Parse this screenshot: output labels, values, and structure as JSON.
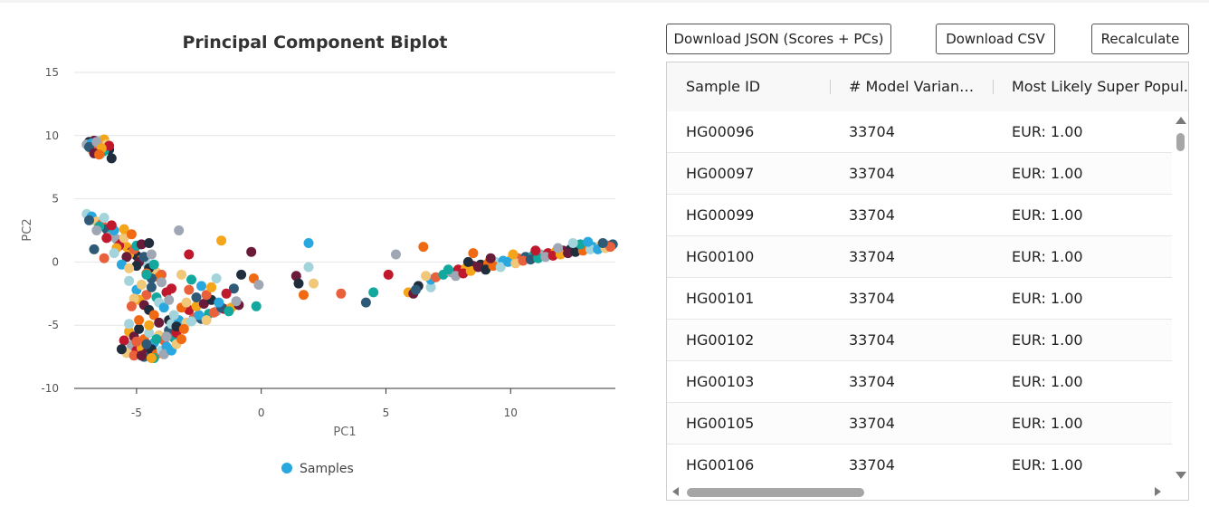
{
  "buttons": {
    "download_json": "Download JSON (Scores + PCs)",
    "download_csv": "Download CSV",
    "recalculate": "Recalculate"
  },
  "table": {
    "columns": [
      "Sample ID",
      "# Model Variants…",
      "Most Likely Super Popul…"
    ],
    "rows": [
      [
        "HG00096",
        "33704",
        "EUR: 1.00"
      ],
      [
        "HG00097",
        "33704",
        "EUR: 1.00"
      ],
      [
        "HG00099",
        "33704",
        "EUR: 1.00"
      ],
      [
        "HG00100",
        "33704",
        "EUR: 1.00"
      ],
      [
        "HG00101",
        "33704",
        "EUR: 1.00"
      ],
      [
        "HG00102",
        "33704",
        "EUR: 1.00"
      ],
      [
        "HG00103",
        "33704",
        "EUR: 1.00"
      ],
      [
        "HG00105",
        "33704",
        "EUR: 1.00"
      ],
      [
        "HG00106",
        "33704",
        "EUR: 1.00"
      ]
    ]
  },
  "chart_data": {
    "type": "scatter",
    "title": "Principal Component Biplot",
    "xlabel": "PC1",
    "ylabel": "PC2",
    "xlim": [
      -7.5,
      14.2
    ],
    "ylim": [
      -10,
      15
    ],
    "xticks": [
      -5,
      0,
      5,
      10
    ],
    "yticks": [
      -10,
      -5,
      0,
      5,
      10,
      15
    ],
    "grid": "horizontal",
    "legend": {
      "position": "bottom-center",
      "entries": [
        "Samples"
      ],
      "color": "#29a8e0"
    },
    "palette": [
      "#29a8e0",
      "#f4a519",
      "#e8603c",
      "#1f2d3d",
      "#13a89e",
      "#a3d4dc",
      "#c0182d",
      "#f1c77a",
      "#6b1b3a",
      "#2e5a78",
      "#f06a13",
      "#9ea7b3"
    ],
    "series": [
      {
        "name": "Samples",
        "points": [
          [
            -6.9,
            9.5
          ],
          [
            -6.7,
            9.2
          ],
          [
            -6.5,
            9.6
          ],
          [
            -6.3,
            9.1
          ],
          [
            -6.8,
            8.9
          ],
          [
            -6.4,
            9.4
          ],
          [
            -6.6,
            8.7
          ],
          [
            -6.2,
            9.0
          ],
          [
            -7.0,
            9.3
          ],
          [
            -6.5,
            8.8
          ],
          [
            -6.3,
            9.7
          ],
          [
            -6.7,
            9.6
          ],
          [
            -6.1,
            8.9
          ],
          [
            -6.6,
            9.0
          ],
          [
            -6.4,
            8.6
          ],
          [
            -6.8,
            9.4
          ],
          [
            -6.2,
            9.3
          ],
          [
            -6.5,
            9.1
          ],
          [
            -6.9,
            9.1
          ],
          [
            -6.3,
            8.8
          ],
          [
            -6.6,
            9.5
          ],
          [
            -6.1,
            9.2
          ],
          [
            -6.4,
            9.0
          ],
          [
            -6.7,
            8.6
          ],
          [
            -6.0,
            8.2
          ],
          [
            -6.5,
            8.5
          ],
          [
            -7.0,
            3.8
          ],
          [
            -6.8,
            3.6
          ],
          [
            -6.6,
            3.2
          ],
          [
            -6.4,
            3.0
          ],
          [
            -6.2,
            2.6
          ],
          [
            -6.0,
            2.2
          ],
          [
            -5.8,
            1.8
          ],
          [
            -5.6,
            1.5
          ],
          [
            -5.4,
            1.2
          ],
          [
            -5.2,
            0.8
          ],
          [
            -5.0,
            0.5
          ],
          [
            -4.8,
            0.2
          ],
          [
            -4.6,
            -0.1
          ],
          [
            -4.4,
            -0.4
          ],
          [
            -4.2,
            -0.8
          ],
          [
            -4.0,
            -1.0
          ],
          [
            -6.9,
            3.3
          ],
          [
            -6.5,
            2.8
          ],
          [
            -6.1,
            2.0
          ],
          [
            -5.7,
            1.3
          ],
          [
            -5.3,
            0.6
          ],
          [
            -4.9,
            0.0
          ],
          [
            -4.5,
            -0.5
          ],
          [
            -4.1,
            -1.2
          ],
          [
            -6.3,
            3.5
          ],
          [
            -5.9,
            2.5
          ],
          [
            -5.5,
            1.9
          ],
          [
            -5.1,
            1.0
          ],
          [
            -4.7,
            0.4
          ],
          [
            -4.3,
            -0.2
          ],
          [
            -6.6,
            2.5
          ],
          [
            -6.2,
            1.9
          ],
          [
            -5.8,
            1.1
          ],
          [
            -5.4,
            0.4
          ],
          [
            -5.0,
            -0.3
          ],
          [
            -4.6,
            -0.9
          ],
          [
            -5.9,
            0.7
          ],
          [
            -5.6,
            -0.2
          ],
          [
            -5.3,
            -0.5
          ],
          [
            -6.3,
            0.3
          ],
          [
            -6.7,
            1.0
          ],
          [
            -5.0,
            1.3
          ],
          [
            -4.4,
            0.6
          ],
          [
            -6.0,
            2.9
          ],
          [
            -5.5,
            2.6
          ],
          [
            -4.8,
            1.4
          ],
          [
            -4.5,
            1.5
          ],
          [
            -5.2,
            2.2
          ],
          [
            -5.3,
            -1.5
          ],
          [
            -5.0,
            -2.2
          ],
          [
            -4.8,
            -1.8
          ],
          [
            -4.6,
            -2.6
          ],
          [
            -4.4,
            -2.0
          ],
          [
            -4.2,
            -2.8
          ],
          [
            -4.0,
            -1.6
          ],
          [
            -3.8,
            -2.4
          ],
          [
            -4.9,
            -3.0
          ],
          [
            -4.7,
            -3.4
          ],
          [
            -4.5,
            -3.8
          ],
          [
            -4.3,
            -4.2
          ],
          [
            -4.1,
            -3.2
          ],
          [
            -3.9,
            -3.6
          ],
          [
            -5.1,
            -2.9
          ],
          [
            -5.2,
            -3.5
          ],
          [
            -4.4,
            -1.3
          ],
          [
            -4.6,
            -1.0
          ],
          [
            -3.7,
            -3.0
          ],
          [
            -3.6,
            -2.1
          ],
          [
            -5.3,
            -5.5
          ],
          [
            -5.1,
            -5.9
          ],
          [
            -4.9,
            -5.3
          ],
          [
            -4.7,
            -6.1
          ],
          [
            -4.5,
            -5.6
          ],
          [
            -4.3,
            -6.4
          ],
          [
            -4.1,
            -5.8
          ],
          [
            -3.9,
            -6.2
          ],
          [
            -3.7,
            -5.4
          ],
          [
            -3.5,
            -6.0
          ],
          [
            -5.2,
            -6.6
          ],
          [
            -5.0,
            -7.0
          ],
          [
            -4.8,
            -6.8
          ],
          [
            -4.6,
            -7.2
          ],
          [
            -4.4,
            -6.9
          ],
          [
            -4.2,
            -7.3
          ],
          [
            -4.0,
            -7.0
          ],
          [
            -3.8,
            -6.7
          ],
          [
            -5.4,
            -7.2
          ],
          [
            -5.1,
            -7.4
          ],
          [
            -4.7,
            -7.5
          ],
          [
            -4.3,
            -7.6
          ],
          [
            -3.9,
            -7.3
          ],
          [
            -5.5,
            -6.2
          ],
          [
            -4.5,
            -5.0
          ],
          [
            -4.1,
            -4.8
          ],
          [
            -3.7,
            -4.6
          ],
          [
            -4.9,
            -4.6
          ],
          [
            -5.3,
            -4.9
          ],
          [
            -3.6,
            -7.0
          ],
          [
            -3.4,
            -6.5
          ],
          [
            -5.0,
            -6.3
          ],
          [
            -4.6,
            -6.5
          ],
          [
            -4.2,
            -6.1
          ],
          [
            -3.8,
            -5.9
          ],
          [
            -3.4,
            -5.6
          ],
          [
            -4.4,
            -7.6
          ],
          [
            -4.8,
            -7.4
          ],
          [
            -5.6,
            -6.9
          ],
          [
            -3.2,
            -6.1
          ],
          [
            -3.6,
            -4.9
          ],
          [
            -3.3,
            -4.6
          ],
          [
            -3.0,
            -4.8
          ],
          [
            -2.7,
            -4.4
          ],
          [
            -2.4,
            -4.5
          ],
          [
            -2.1,
            -4.1
          ],
          [
            -1.8,
            -3.9
          ],
          [
            -1.5,
            -3.7
          ],
          [
            -1.2,
            -3.6
          ],
          [
            -0.9,
            -3.4
          ],
          [
            -3.4,
            -5.1
          ],
          [
            -3.1,
            -5.3
          ],
          [
            -2.8,
            -4.7
          ],
          [
            -2.5,
            -4.2
          ],
          [
            -2.2,
            -4.6
          ],
          [
            -1.9,
            -4.0
          ],
          [
            -1.6,
            -3.6
          ],
          [
            -1.3,
            -3.9
          ],
          [
            -1.0,
            -3.1
          ],
          [
            -2.9,
            -3.8
          ],
          [
            -2.6,
            -3.5
          ],
          [
            -2.3,
            -3.3
          ],
          [
            -2.0,
            -3.0
          ],
          [
            -3.2,
            -3.6
          ],
          [
            -3.5,
            -4.2
          ],
          [
            -1.7,
            -3.2
          ],
          [
            -3.2,
            -1.0
          ],
          [
            -2.9,
            -2.2
          ],
          [
            -2.6,
            -2.8
          ],
          [
            -2.8,
            -1.4
          ],
          [
            -3.3,
            2.5
          ],
          [
            -2.9,
            0.6
          ],
          [
            -1.6,
            1.7
          ],
          [
            -0.4,
            0.8
          ],
          [
            -0.8,
            -1.0
          ],
          [
            -0.3,
            -1.3
          ],
          [
            -1.8,
            -1.3
          ],
          [
            -2.4,
            -1.9
          ],
          [
            -3.0,
            -3.2
          ],
          [
            -2.2,
            -2.6
          ],
          [
            -1.1,
            -2.1
          ],
          [
            -0.2,
            -3.5
          ],
          [
            -0.1,
            -1.8
          ],
          [
            -1.4,
            -2.5
          ],
          [
            -2.0,
            -2.0
          ],
          [
            1.4,
            -1.1
          ],
          [
            1.5,
            -1.7
          ],
          [
            1.7,
            -2.6
          ],
          [
            1.9,
            -0.4
          ],
          [
            1.9,
            1.5
          ],
          [
            2.1,
            -1.7
          ],
          [
            3.2,
            -2.5
          ],
          [
            4.2,
            -3.2
          ],
          [
            4.5,
            -2.4
          ],
          [
            5.4,
            0.6
          ],
          [
            5.1,
            -1.0
          ],
          [
            5.9,
            -2.4
          ],
          [
            6.1,
            -2.5
          ],
          [
            6.3,
            -1.9
          ],
          [
            6.5,
            1.2
          ],
          [
            6.8,
            -2.0
          ],
          [
            6.8,
            -1.4
          ],
          [
            6.6,
            -1.1
          ],
          [
            7.0,
            -1.2
          ],
          [
            6.2,
            -2.2
          ],
          [
            7.3,
            -1.0
          ],
          [
            7.6,
            -0.8
          ],
          [
            7.9,
            -0.6
          ],
          [
            8.2,
            -0.5
          ],
          [
            8.5,
            -0.3
          ],
          [
            8.8,
            -0.2
          ],
          [
            9.1,
            -0.1
          ],
          [
            9.4,
            0.0
          ],
          [
            9.7,
            0.1
          ],
          [
            10.0,
            0.2
          ],
          [
            10.3,
            0.3
          ],
          [
            10.6,
            0.4
          ],
          [
            10.9,
            0.5
          ],
          [
            11.2,
            0.6
          ],
          [
            11.5,
            0.7
          ],
          [
            11.8,
            0.8
          ],
          [
            12.1,
            0.9
          ],
          [
            12.4,
            1.0
          ],
          [
            12.7,
            1.1
          ],
          [
            13.0,
            1.2
          ],
          [
            13.3,
            1.2
          ],
          [
            13.6,
            1.3
          ],
          [
            13.9,
            1.3
          ],
          [
            14.1,
            1.4
          ],
          [
            7.5,
            -0.6
          ],
          [
            7.8,
            -1.1
          ],
          [
            8.1,
            -0.9
          ],
          [
            8.4,
            -0.7
          ],
          [
            8.7,
            -0.4
          ],
          [
            9.0,
            -0.6
          ],
          [
            9.3,
            -0.3
          ],
          [
            9.6,
            -0.4
          ],
          [
            9.9,
            0.0
          ],
          [
            10.2,
            -0.1
          ],
          [
            10.5,
            0.1
          ],
          [
            10.8,
            0.2
          ],
          [
            11.1,
            0.3
          ],
          [
            11.4,
            0.4
          ],
          [
            11.7,
            0.5
          ],
          [
            12.0,
            0.6
          ],
          [
            12.3,
            0.7
          ],
          [
            12.6,
            0.8
          ],
          [
            12.9,
            0.9
          ],
          [
            13.2,
            1.0
          ],
          [
            13.5,
            1.0
          ],
          [
            13.8,
            1.1
          ],
          [
            14.0,
            1.2
          ],
          [
            13.7,
            1.5
          ],
          [
            12.8,
            1.4
          ],
          [
            11.9,
            1.1
          ],
          [
            11.0,
            0.9
          ],
          [
            10.1,
            0.6
          ],
          [
            9.2,
            0.3
          ],
          [
            8.3,
            0.0
          ],
          [
            8.5,
            0.7
          ],
          [
            12.5,
            1.5
          ],
          [
            13.1,
            1.6
          ]
        ]
      }
    ]
  }
}
